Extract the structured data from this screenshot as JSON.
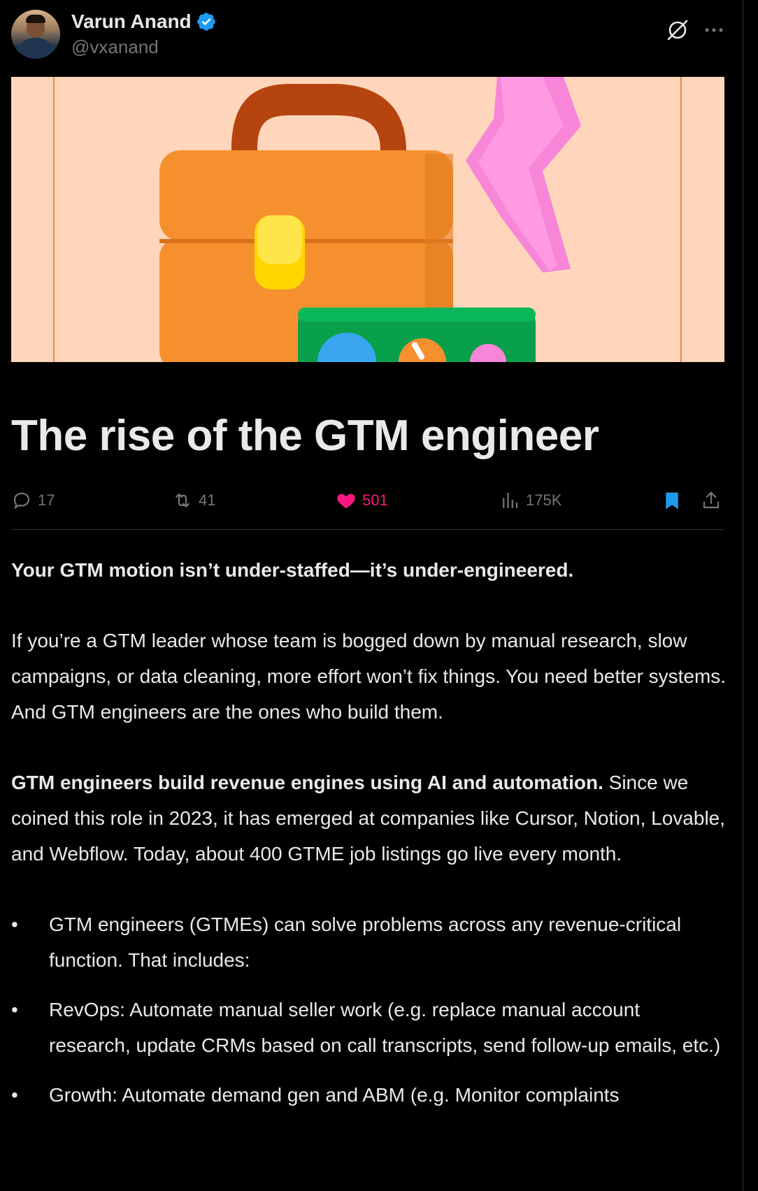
{
  "author": {
    "display_name": "Varun Anand",
    "handle": "@vxanand"
  },
  "icons": {
    "verified": "verified-badge-icon",
    "grok": "grok-icon",
    "more": "more-icon",
    "reply": "reply-icon",
    "repost": "repost-icon",
    "like": "heart-icon",
    "views": "views-icon",
    "bookmark": "bookmark-icon",
    "share": "share-icon"
  },
  "colors": {
    "background": "#000000",
    "text": "#e7e9ea",
    "muted": "#71767b",
    "like": "#f91880",
    "accent": "#1d9bf0",
    "cover_bg": "#ffd6bb"
  },
  "article": {
    "title": "The rise of the GTM engineer"
  },
  "stats": {
    "replies": "17",
    "reposts": "41",
    "likes": "501",
    "views": "175K"
  },
  "body": {
    "lead": "Your GTM motion isn’t under-staffed—it’s under-engineered.",
    "para1": "If you’re a GTM leader whose team is bogged down by manual research, slow campaigns, or data cleaning, more effort won’t fix things. You need better systems. And GTM engineers are the ones who build them.",
    "para2_bold": "GTM engineers build revenue engines using AI and automation.",
    "para2_rest": " Since we coined this role in 2023, it has emerged at companies like Cursor, Notion, Lovable, and Webflow. Today, about 400 GTME job listings go live every month.",
    "bullets": [
      "GTM engineers (GTMEs) can solve problems across any revenue-critical function. That includes:",
      "RevOps: Automate manual seller work (e.g. replace manual account research, update CRMs based on call transcripts, send follow-up emails, etc.)",
      "Growth: Automate demand gen and ABM (e.g. Monitor complaints"
    ]
  }
}
